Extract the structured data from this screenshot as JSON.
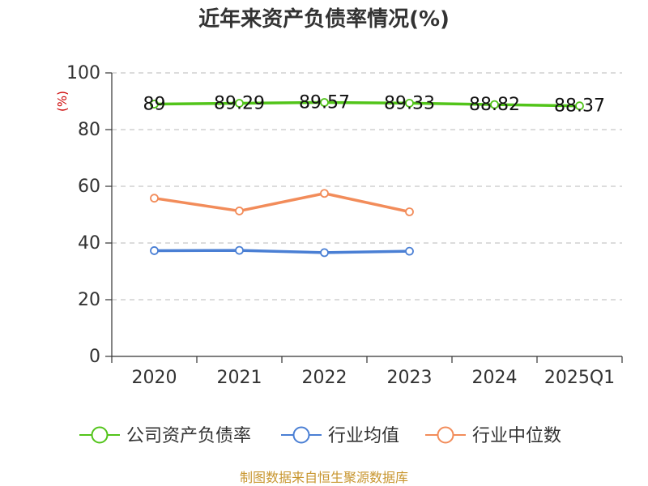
{
  "chart_data": {
    "type": "line",
    "title": "近年来资产负债率情况(%)",
    "ylabel": "(%)",
    "xlabel": "",
    "categories": [
      "2020",
      "2021",
      "2022",
      "2023",
      "2024",
      "2025Q1"
    ],
    "ylim": [
      0,
      100
    ],
    "yticks": [
      0,
      20,
      40,
      60,
      80,
      100
    ],
    "grid": true,
    "legend_position": "bottom",
    "series": [
      {
        "name": "公司资产负债率",
        "color": "#52c41a",
        "values": [
          89,
          89.29,
          89.57,
          89.33,
          88.82,
          88.37
        ],
        "labels": [
          "89",
          "89.29",
          "89.57",
          "89.33",
          "88.82",
          "88.37"
        ]
      },
      {
        "name": "行业均值",
        "color": "#4a7fd4",
        "values": [
          37.3,
          37.4,
          36.6,
          37.1,
          null,
          null
        ]
      },
      {
        "name": "行业中位数",
        "color": "#f28c5a",
        "values": [
          55.8,
          51.3,
          57.5,
          51.0,
          null,
          null
        ]
      }
    ]
  },
  "source": "制图数据来自恒生聚源数据库"
}
